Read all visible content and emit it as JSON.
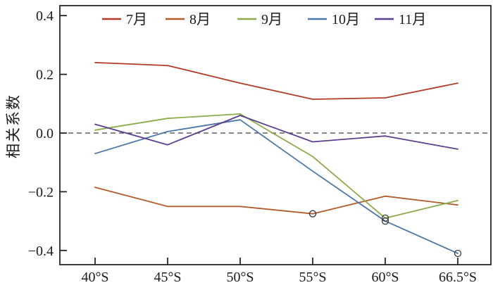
{
  "figure": {
    "background": "#ffffff",
    "axis_color": "#1a1a1a",
    "zero_line_color": "#404040",
    "marker_color": "#3a3a3a"
  },
  "chart_data": {
    "type": "line",
    "title": "",
    "xlabel": "",
    "ylabel": "相关系数",
    "categories": [
      "40°S",
      "45°S",
      "50°S",
      "55°S",
      "60°S",
      "66.5°S"
    ],
    "ylim": [
      -0.44,
      0.44
    ],
    "yticks": [
      0.4,
      0.2,
      0.0,
      -0.2,
      -0.4
    ],
    "ytick_labels": [
      "0.4",
      "0.2",
      "0.0",
      "−0.2",
      "−0.4"
    ],
    "grid": false,
    "legend_position": "top-inside-row",
    "zero_line": {
      "style": "dashed",
      "value": 0
    },
    "series": [
      {
        "name": "7月",
        "color": "#b23b27",
        "values": [
          0.24,
          0.23,
          0.17,
          0.115,
          0.12,
          0.17
        ]
      },
      {
        "name": "8月",
        "color": "#b25d2b",
        "values": [
          -0.185,
          -0.25,
          -0.25,
          -0.275,
          -0.215,
          -0.245
        ]
      },
      {
        "name": "9月",
        "color": "#8cab4b",
        "values": [
          0.01,
          0.05,
          0.065,
          -0.08,
          -0.29,
          -0.23
        ]
      },
      {
        "name": "10月",
        "color": "#4b77a9",
        "values": [
          -0.07,
          0.005,
          0.045,
          -0.13,
          -0.3,
          -0.41
        ]
      },
      {
        "name": "11月",
        "color": "#5b3f8e",
        "values": [
          0.03,
          -0.04,
          0.06,
          -0.03,
          -0.01,
          -0.055
        ]
      }
    ],
    "significance_markers": [
      {
        "series": "8月",
        "category": "55°S",
        "value": -0.275
      },
      {
        "series": "9月",
        "category": "60°S",
        "value": -0.29
      },
      {
        "series": "10月",
        "category": "60°S",
        "value": -0.3
      },
      {
        "series": "10月",
        "category": "66.5°S",
        "value": -0.41
      }
    ]
  }
}
